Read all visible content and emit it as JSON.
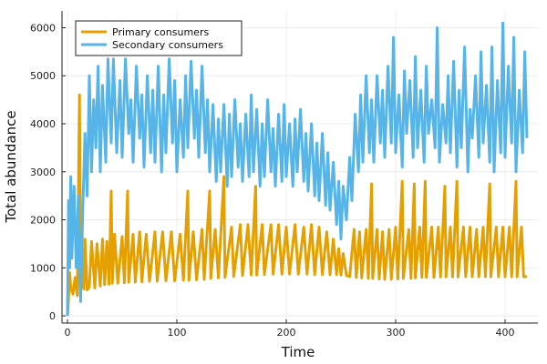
{
  "chart_data": {
    "type": "line",
    "xlabel": "Time",
    "ylabel": "Total abundance",
    "xlim": [
      -5,
      430
    ],
    "ylim": [
      -150,
      6350
    ],
    "xticks": [
      0,
      100,
      200,
      300,
      400
    ],
    "yticks": [
      0,
      1000,
      2000,
      3000,
      4000,
      5000,
      6000
    ],
    "grid": true,
    "legend_position": "top-left",
    "series": [
      {
        "name": "Primary consumers",
        "color": "#e5a000",
        "points": [
          [
            0,
            0
          ],
          [
            1,
            350
          ],
          [
            2,
            900
          ],
          [
            3,
            600
          ],
          [
            5,
            450
          ],
          [
            7,
            800
          ],
          [
            9,
            420
          ],
          [
            11,
            4600
          ],
          [
            12,
            1000
          ],
          [
            13,
            600
          ],
          [
            14,
            1400
          ],
          [
            15,
            560
          ],
          [
            16,
            1600
          ],
          [
            18,
            540
          ],
          [
            20,
            600
          ],
          [
            22,
            1550
          ],
          [
            25,
            580
          ],
          [
            27,
            1500
          ],
          [
            30,
            620
          ],
          [
            32,
            1600
          ],
          [
            34,
            650
          ],
          [
            36,
            1550
          ],
          [
            38,
            660
          ],
          [
            40,
            2600
          ],
          [
            41,
            680
          ],
          [
            43,
            1700
          ],
          [
            46,
            680
          ],
          [
            50,
            1650
          ],
          [
            52,
            690
          ],
          [
            55,
            2600
          ],
          [
            56,
            700
          ],
          [
            60,
            1700
          ],
          [
            62,
            700
          ],
          [
            66,
            1750
          ],
          [
            68,
            710
          ],
          [
            72,
            1700
          ],
          [
            75,
            720
          ],
          [
            80,
            1750
          ],
          [
            82,
            720
          ],
          [
            87,
            1750
          ],
          [
            90,
            730
          ],
          [
            95,
            1750
          ],
          [
            98,
            730
          ],
          [
            103,
            1700
          ],
          [
            106,
            740
          ],
          [
            110,
            2600
          ],
          [
            111,
            740
          ],
          [
            115,
            1750
          ],
          [
            118,
            750
          ],
          [
            123,
            1800
          ],
          [
            125,
            760
          ],
          [
            130,
            2600
          ],
          [
            131,
            780
          ],
          [
            135,
            1800
          ],
          [
            138,
            790
          ],
          [
            143,
            2900
          ],
          [
            144,
            800
          ],
          [
            150,
            1850
          ],
          [
            152,
            820
          ],
          [
            158,
            1900
          ],
          [
            160,
            840
          ],
          [
            165,
            1900
          ],
          [
            168,
            850
          ],
          [
            172,
            2700
          ],
          [
            173,
            850
          ],
          [
            178,
            1900
          ],
          [
            180,
            860
          ],
          [
            186,
            1900
          ],
          [
            188,
            870
          ],
          [
            193,
            1900
          ],
          [
            196,
            870
          ],
          [
            200,
            1850
          ],
          [
            203,
            870
          ],
          [
            208,
            1900
          ],
          [
            211,
            870
          ],
          [
            216,
            1850
          ],
          [
            219,
            870
          ],
          [
            223,
            1900
          ],
          [
            226,
            860
          ],
          [
            230,
            1850
          ],
          [
            233,
            860
          ],
          [
            237,
            1750
          ],
          [
            240,
            860
          ],
          [
            243,
            1600
          ],
          [
            246,
            860
          ],
          [
            248,
            1400
          ],
          [
            250,
            850
          ],
          [
            252,
            1300
          ],
          [
            255,
            840
          ],
          [
            258,
            820
          ],
          [
            262,
            1800
          ],
          [
            264,
            800
          ],
          [
            267,
            1750
          ],
          [
            269,
            790
          ],
          [
            273,
            1800
          ],
          [
            275,
            780
          ],
          [
            278,
            2750
          ],
          [
            279,
            780
          ],
          [
            283,
            1800
          ],
          [
            285,
            770
          ],
          [
            288,
            1750
          ],
          [
            290,
            760
          ],
          [
            294,
            1800
          ],
          [
            296,
            760
          ],
          [
            300,
            1850
          ],
          [
            302,
            770
          ],
          [
            306,
            2800
          ],
          [
            307,
            780
          ],
          [
            312,
            1800
          ],
          [
            314,
            780
          ],
          [
            317,
            2750
          ],
          [
            318,
            790
          ],
          [
            322,
            1850
          ],
          [
            324,
            800
          ],
          [
            327,
            2800
          ],
          [
            328,
            800
          ],
          [
            333,
            1850
          ],
          [
            335,
            800
          ],
          [
            339,
            1850
          ],
          [
            341,
            810
          ],
          [
            345,
            2700
          ],
          [
            346,
            810
          ],
          [
            350,
            1850
          ],
          [
            352,
            810
          ],
          [
            356,
            2800
          ],
          [
            357,
            810
          ],
          [
            362,
            1850
          ],
          [
            364,
            815
          ],
          [
            368,
            1850
          ],
          [
            370,
            815
          ],
          [
            374,
            1800
          ],
          [
            376,
            815
          ],
          [
            380,
            1850
          ],
          [
            382,
            815
          ],
          [
            386,
            2750
          ],
          [
            387,
            815
          ],
          [
            392,
            1850
          ],
          [
            394,
            815
          ],
          [
            398,
            1850
          ],
          [
            400,
            815
          ],
          [
            404,
            1850
          ],
          [
            406,
            815
          ],
          [
            410,
            2800
          ],
          [
            411,
            815
          ],
          [
            415,
            1850
          ],
          [
            417,
            815
          ],
          [
            420,
            820
          ]
        ]
      },
      {
        "name": "Secondary consumers",
        "color": "#56b4e9",
        "points": [
          [
            0,
            0
          ],
          [
            1,
            2400
          ],
          [
            2,
            1000
          ],
          [
            3,
            2900
          ],
          [
            4,
            1200
          ],
          [
            6,
            2700
          ],
          [
            8,
            1000
          ],
          [
            10,
            2500
          ],
          [
            12,
            300
          ],
          [
            14,
            2200
          ],
          [
            16,
            3800
          ],
          [
            18,
            2500
          ],
          [
            20,
            5000
          ],
          [
            22,
            3000
          ],
          [
            24,
            4500
          ],
          [
            26,
            3500
          ],
          [
            28,
            5200
          ],
          [
            30,
            3000
          ],
          [
            32,
            4800
          ],
          [
            35,
            3200
          ],
          [
            37,
            5350
          ],
          [
            40,
            3600
          ],
          [
            42,
            5350
          ],
          [
            45,
            3400
          ],
          [
            48,
            4900
          ],
          [
            50,
            3300
          ],
          [
            53,
            5350
          ],
          [
            56,
            3800
          ],
          [
            58,
            4500
          ],
          [
            60,
            3200
          ],
          [
            63,
            5200
          ],
          [
            66,
            3700
          ],
          [
            68,
            4600
          ],
          [
            70,
            3100
          ],
          [
            73,
            5000
          ],
          [
            76,
            3400
          ],
          [
            78,
            4700
          ],
          [
            80,
            3200
          ],
          [
            83,
            5200
          ],
          [
            86,
            3000
          ],
          [
            88,
            4600
          ],
          [
            90,
            3400
          ],
          [
            93,
            5350
          ],
          [
            96,
            3600
          ],
          [
            98,
            4900
          ],
          [
            100,
            3000
          ],
          [
            103,
            4500
          ],
          [
            106,
            3300
          ],
          [
            108,
            5000
          ],
          [
            110,
            3500
          ],
          [
            113,
            5300
          ],
          [
            116,
            3700
          ],
          [
            118,
            4700
          ],
          [
            120,
            3300
          ],
          [
            123,
            5200
          ],
          [
            126,
            3400
          ],
          [
            128,
            4500
          ],
          [
            130,
            3000
          ],
          [
            133,
            4400
          ],
          [
            136,
            2800
          ],
          [
            138,
            4100
          ],
          [
            140,
            3000
          ],
          [
            143,
            4400
          ],
          [
            146,
            2700
          ],
          [
            148,
            4200
          ],
          [
            150,
            2900
          ],
          [
            153,
            4500
          ],
          [
            156,
            3100
          ],
          [
            158,
            4000
          ],
          [
            160,
            2800
          ],
          [
            163,
            4200
          ],
          [
            166,
            2900
          ],
          [
            168,
            4600
          ],
          [
            170,
            3000
          ],
          [
            173,
            4300
          ],
          [
            176,
            2700
          ],
          [
            178,
            4000
          ],
          [
            180,
            2900
          ],
          [
            183,
            4500
          ],
          [
            186,
            3000
          ],
          [
            188,
            3900
          ],
          [
            190,
            2700
          ],
          [
            193,
            4200
          ],
          [
            196,
            2800
          ],
          [
            198,
            4400
          ],
          [
            200,
            2900
          ],
          [
            203,
            4000
          ],
          [
            206,
            2700
          ],
          [
            208,
            4100
          ],
          [
            210,
            3000
          ],
          [
            213,
            4300
          ],
          [
            216,
            2800
          ],
          [
            218,
            3800
          ],
          [
            220,
            2600
          ],
          [
            223,
            4000
          ],
          [
            226,
            2500
          ],
          [
            228,
            3600
          ],
          [
            230,
            2400
          ],
          [
            233,
            3800
          ],
          [
            236,
            2300
          ],
          [
            238,
            3400
          ],
          [
            240,
            2200
          ],
          [
            243,
            3200
          ],
          [
            246,
            1900
          ],
          [
            248,
            2800
          ],
          [
            250,
            1600
          ],
          [
            252,
            2700
          ],
          [
            255,
            2000
          ],
          [
            258,
            3300
          ],
          [
            260,
            2400
          ],
          [
            263,
            4200
          ],
          [
            266,
            3000
          ],
          [
            268,
            4600
          ],
          [
            270,
            3200
          ],
          [
            273,
            5000
          ],
          [
            276,
            3400
          ],
          [
            278,
            4500
          ],
          [
            280,
            3200
          ],
          [
            283,
            5000
          ],
          [
            286,
            3600
          ],
          [
            288,
            4700
          ],
          [
            290,
            3300
          ],
          [
            293,
            5200
          ],
          [
            296,
            3600
          ],
          [
            298,
            5800
          ],
          [
            300,
            3400
          ],
          [
            303,
            4600
          ],
          [
            306,
            3100
          ],
          [
            308,
            5100
          ],
          [
            310,
            3800
          ],
          [
            313,
            4900
          ],
          [
            316,
            3300
          ],
          [
            318,
            5400
          ],
          [
            320,
            3500
          ],
          [
            323,
            4700
          ],
          [
            326,
            3200
          ],
          [
            328,
            5200
          ],
          [
            330,
            3800
          ],
          [
            333,
            4500
          ],
          [
            336,
            3500
          ],
          [
            338,
            6000
          ],
          [
            340,
            3200
          ],
          [
            343,
            4400
          ],
          [
            346,
            3600
          ],
          [
            348,
            5000
          ],
          [
            350,
            3400
          ],
          [
            353,
            5300
          ],
          [
            356,
            3100
          ],
          [
            358,
            4700
          ],
          [
            360,
            3500
          ],
          [
            363,
            5600
          ],
          [
            366,
            3000
          ],
          [
            368,
            4300
          ],
          [
            370,
            3700
          ],
          [
            373,
            5000
          ],
          [
            376,
            3300
          ],
          [
            378,
            5500
          ],
          [
            380,
            3600
          ],
          [
            383,
            4800
          ],
          [
            386,
            3200
          ],
          [
            388,
            5600
          ],
          [
            390,
            3000
          ],
          [
            393,
            4900
          ],
          [
            396,
            3400
          ],
          [
            398,
            6100
          ],
          [
            400,
            3300
          ],
          [
            403,
            5200
          ],
          [
            406,
            3600
          ],
          [
            408,
            5800
          ],
          [
            410,
            3000
          ],
          [
            413,
            4700
          ],
          [
            416,
            3400
          ],
          [
            418,
            5500
          ],
          [
            420,
            3700
          ]
        ]
      }
    ]
  }
}
